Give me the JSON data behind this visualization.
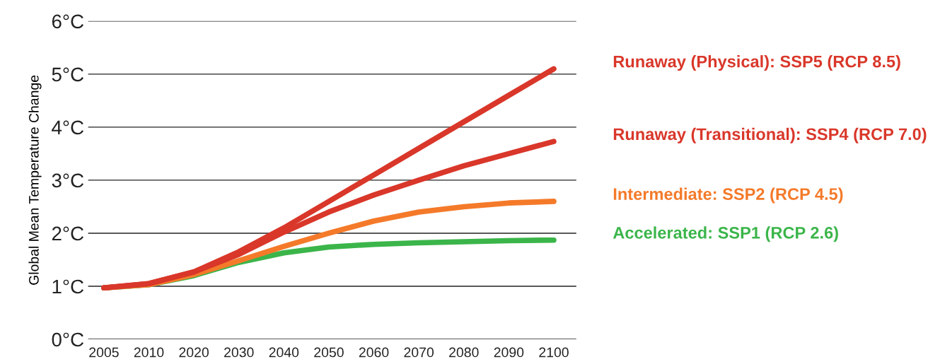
{
  "chart_data": {
    "type": "line",
    "ylabel": "Global Mean Temperature Change",
    "categories": [
      "2005",
      "2010",
      "2020",
      "2030",
      "2040",
      "2050",
      "2060",
      "2070",
      "2080",
      "2090",
      "2100"
    ],
    "series": [
      {
        "name": "Accelerated: SSP1 (RCP 2.6)",
        "color": "#3bb54a",
        "values": [
          0.97,
          1.03,
          1.2,
          1.45,
          1.63,
          1.74,
          1.79,
          1.82,
          1.84,
          1.86,
          1.87
        ]
      },
      {
        "name": "Intermediate: SSP2 (RCP 4.5)",
        "color": "#f47a2a",
        "values": [
          0.97,
          1.03,
          1.22,
          1.48,
          1.75,
          2.0,
          2.23,
          2.4,
          2.5,
          2.57,
          2.6
        ]
      },
      {
        "name": "Runaway (Transitional): SSP4 (RCP 7.0)",
        "color": "#d9372a",
        "values": [
          0.97,
          1.05,
          1.27,
          1.6,
          2.02,
          2.4,
          2.72,
          3.0,
          3.27,
          3.5,
          3.73
        ]
      },
      {
        "name": "Runaway (Physical): SSP5 (RCP 8.5)",
        "color": "#d9372a",
        "values": [
          0.97,
          1.05,
          1.27,
          1.65,
          2.1,
          2.6,
          3.1,
          3.6,
          4.1,
          4.6,
          5.1
        ]
      }
    ],
    "ylim": [
      0,
      6
    ],
    "yticks": [
      {
        "value": 0,
        "label": "0°C"
      },
      {
        "value": 1,
        "label": "1°C"
      },
      {
        "value": 2,
        "label": "2°C"
      },
      {
        "value": 3,
        "label": "3°C"
      },
      {
        "value": 4,
        "label": "4°C"
      },
      {
        "value": 5,
        "label": "5°C"
      },
      {
        "value": 6,
        "label": "6°C"
      }
    ],
    "grid": "y",
    "legend": false,
    "marker": "none",
    "line_style": "solid"
  }
}
